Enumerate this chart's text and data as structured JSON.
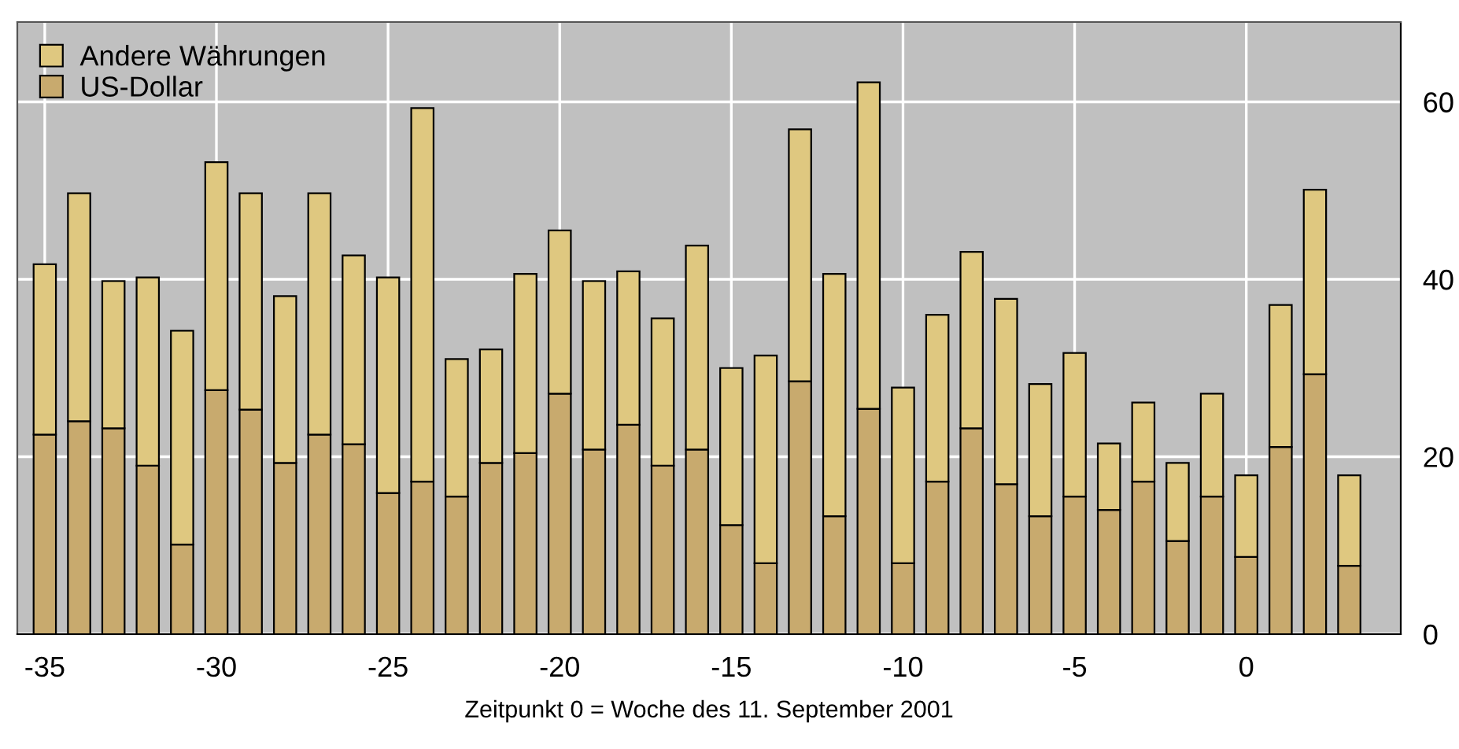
{
  "chart_data": {
    "type": "bar",
    "stacked": true,
    "xlabel": "Zeitpunkt 0 = Woche des 11. September 2001",
    "x": [
      -35,
      -34,
      -33,
      -32,
      -31,
      -30,
      -29,
      -28,
      -27,
      -26,
      -25,
      -24,
      -23,
      -22,
      -21,
      -20,
      -19,
      -18,
      -17,
      -16,
      -15,
      -14,
      -13,
      -12,
      -11,
      -10,
      -9,
      -8,
      -7,
      -6,
      -5,
      -4,
      -3,
      -2,
      -1,
      0,
      1,
      2,
      3
    ],
    "series": [
      {
        "name": "US-Dollar",
        "color": "#c8aa6e",
        "values": [
          22.5,
          24.0,
          23.2,
          19.0,
          10.1,
          27.5,
          25.3,
          19.3,
          22.5,
          21.4,
          15.9,
          17.2,
          15.5,
          19.3,
          20.4,
          27.1,
          20.8,
          23.6,
          19.0,
          20.8,
          12.3,
          8.0,
          28.5,
          13.3,
          25.4,
          8.0,
          17.2,
          23.2,
          16.9,
          13.3,
          15.5,
          14.0,
          17.2,
          10.5,
          15.5,
          8.7,
          21.1,
          29.3,
          7.7
        ]
      },
      {
        "name": "Andere Währungen",
        "color": "#dfc880",
        "values": [
          19.2,
          25.7,
          16.6,
          21.2,
          24.1,
          25.7,
          24.4,
          18.8,
          27.2,
          21.3,
          24.3,
          42.1,
          15.5,
          12.8,
          20.2,
          18.4,
          19.0,
          17.3,
          16.6,
          23.0,
          17.7,
          23.4,
          28.4,
          27.3,
          36.8,
          19.8,
          18.8,
          19.9,
          20.9,
          14.9,
          16.2,
          7.5,
          8.9,
          8.8,
          11.6,
          9.2,
          16.0,
          20.8,
          10.2
        ]
      }
    ],
    "xlim": [
      -35.8,
      4.5
    ],
    "xticks": [
      -35,
      -30,
      -25,
      -20,
      -15,
      -10,
      -5,
      0
    ],
    "ylim": [
      0,
      69
    ],
    "yticks": [
      0,
      20,
      40,
      60
    ],
    "grid": true,
    "legend": "top left"
  }
}
